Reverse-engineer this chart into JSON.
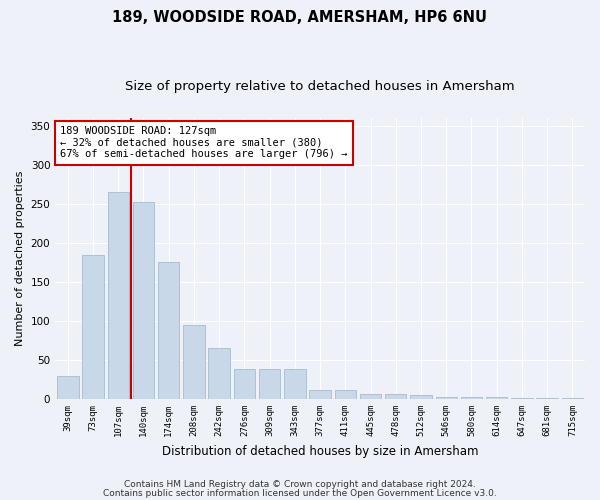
{
  "title": "189, WOODSIDE ROAD, AMERSHAM, HP6 6NU",
  "subtitle": "Size of property relative to detached houses in Amersham",
  "xlabel": "Distribution of detached houses by size in Amersham",
  "ylabel": "Number of detached properties",
  "bar_labels": [
    "39sqm",
    "73sqm",
    "107sqm",
    "140sqm",
    "174sqm",
    "208sqm",
    "242sqm",
    "276sqm",
    "309sqm",
    "343sqm",
    "377sqm",
    "411sqm",
    "445sqm",
    "478sqm",
    "512sqm",
    "546sqm",
    "580sqm",
    "614sqm",
    "647sqm",
    "681sqm",
    "715sqm"
  ],
  "bar_values": [
    30,
    185,
    265,
    252,
    176,
    95,
    65,
    38,
    38,
    38,
    11,
    11,
    7,
    6,
    5,
    3,
    2,
    2,
    1,
    1,
    1
  ],
  "bar_color": "#c8d8e8",
  "bar_edge_color": "#9ab4c8",
  "vline_x_index": 2,
  "vline_color": "#cc0000",
  "annotation_line1": "189 WOODSIDE ROAD: 127sqm",
  "annotation_line2": "← 32% of detached houses are smaller (380)",
  "annotation_line3": "67% of semi-detached houses are larger (796) →",
  "annotation_box_color": "white",
  "annotation_box_edge": "#cc0000",
  "ylim": [
    0,
    360
  ],
  "yticks": [
    0,
    50,
    100,
    150,
    200,
    250,
    300,
    350
  ],
  "footer1": "Contains HM Land Registry data © Crown copyright and database right 2024.",
  "footer2": "Contains public sector information licensed under the Open Government Licence v3.0.",
  "bg_color": "#eef2f8",
  "plot_bg_color": "#eef2f8",
  "grid_color": "#ffffff",
  "title_fontsize": 10.5,
  "subtitle_fontsize": 9.5,
  "tick_fontsize": 6.5,
  "ylabel_fontsize": 8,
  "xlabel_fontsize": 8.5,
  "annotation_fontsize": 7.5,
  "footer_fontsize": 6.5
}
